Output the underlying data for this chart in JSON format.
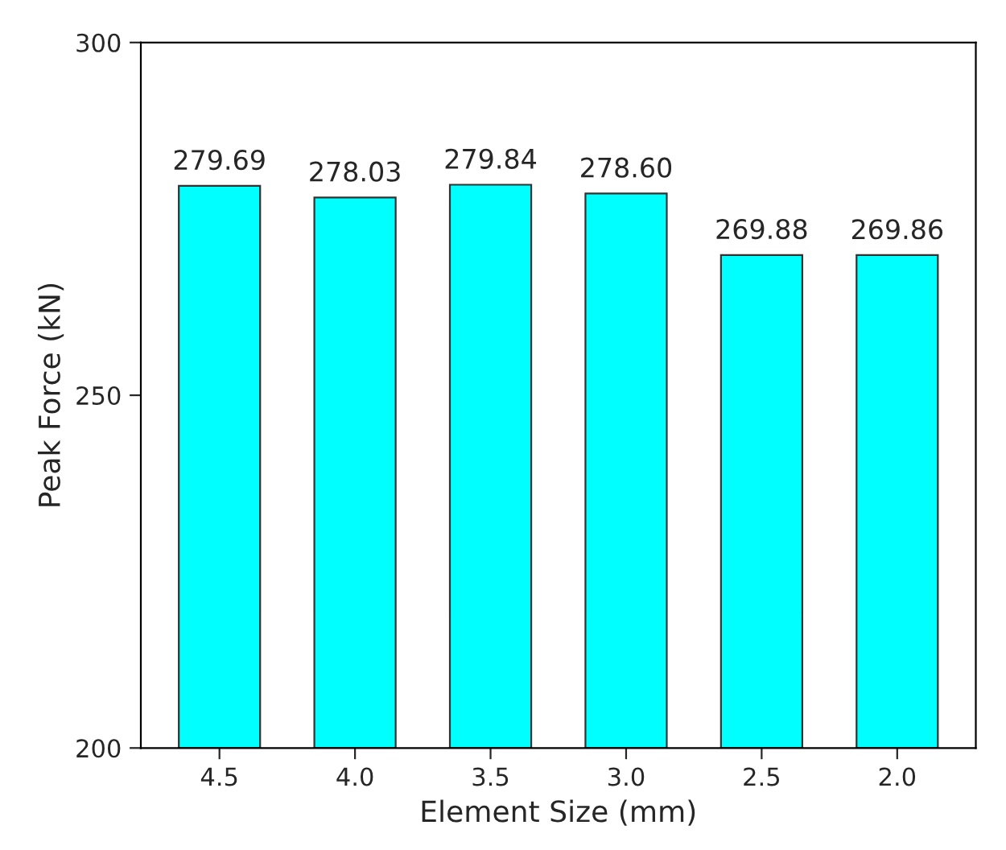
{
  "chart_data": {
    "type": "bar",
    "xlabel": "Element Size (mm)",
    "ylabel": "Peak Force (kN)",
    "categories": [
      "4.5",
      "4.0",
      "3.5",
      "3.0",
      "2.5",
      "2.0"
    ],
    "values": [
      279.69,
      278.03,
      279.84,
      278.6,
      269.88,
      269.86
    ],
    "color": "#00ffff",
    "ylim": [
      200,
      300
    ],
    "yticks": [
      200,
      250,
      300
    ],
    "value_labels": [
      "279.69",
      "278.03",
      "279.84",
      "278.60",
      "269.88",
      "269.86"
    ],
    "grid": false,
    "legend": false
  }
}
